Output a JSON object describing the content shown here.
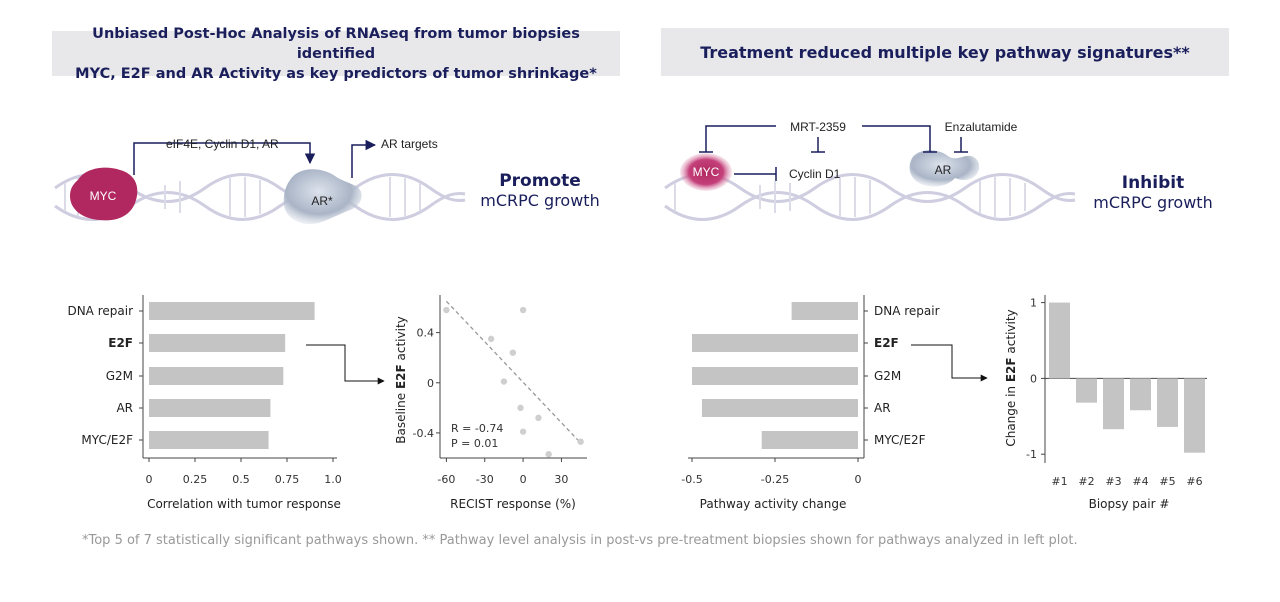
{
  "banners": {
    "left_line1": "Unbiased Post-Hoc Analysis of RNAseq from tumor biopsies identified",
    "left_line2": "MYC, E2F and AR Activity as key predictors of tumor shrinkage*",
    "right": "Treatment reduced multiple key pathway signatures**"
  },
  "diagram_left": {
    "myc": "MYC",
    "ar": "AR*",
    "arrow1": "eIF4E, Cyclin D1, AR",
    "arrow2": "AR targets",
    "effect_bold": "Promote",
    "effect_text": "mCRPC growth"
  },
  "diagram_right": {
    "myc": "MYC",
    "ar": "AR",
    "drug1": "MRT-2359",
    "drug2": "Enzalutamide",
    "target": "Cyclin D1",
    "effect_bold": "Inhibit",
    "effect_text": "mCRPC growth"
  },
  "footnote": "*Top 5 of 7 statistically significant pathways shown. ** Pathway level analysis in post-vs pre-treatment biopsies shown for pathways analyzed in left plot.",
  "chart_data": [
    {
      "type": "bar",
      "orientation": "horizontal",
      "categories": [
        "DNA repair",
        "E2F",
        "G2M",
        "AR",
        "MYC/E2F"
      ],
      "highlight": "E2F",
      "values": [
        0.9,
        0.74,
        0.73,
        0.66,
        0.65
      ],
      "xlabel": "Correlation with tumor response",
      "xlim": [
        0,
        1.0
      ],
      "xticks": [
        "0",
        "0.25",
        "0.5",
        "0.75",
        "1.0"
      ],
      "xtick_values": [
        0,
        0.25,
        0.5,
        0.75,
        1.0
      ]
    },
    {
      "type": "scatter",
      "x": [
        -60,
        0,
        -25,
        -8,
        -15,
        -2,
        12,
        0,
        20,
        45
      ],
      "y": [
        0.58,
        0.58,
        0.35,
        0.24,
        0.01,
        -0.2,
        -0.28,
        -0.39,
        -0.57,
        -0.47
      ],
      "trendline": {
        "x": [
          -60,
          45
        ],
        "y": [
          0.65,
          -0.48
        ]
      },
      "xlabel": "RECIST response (%)",
      "ylabel_prefix": "Baseline ",
      "ylabel_bold": "E2F",
      "ylabel_suffix": " activity",
      "xlim": [
        -65,
        50
      ],
      "ylim": [
        -0.6,
        0.7
      ],
      "xticks": [
        "-60",
        "-30",
        "0",
        "30"
      ],
      "xtick_values": [
        -60,
        -30,
        0,
        30
      ],
      "yticks": [
        "0.4",
        "0",
        "-0.4"
      ],
      "ytick_values": [
        0.4,
        0,
        -0.4
      ],
      "annotation_r": "R = -0.74",
      "annotation_p": "P = 0.01"
    },
    {
      "type": "bar",
      "orientation": "horizontal",
      "categories": [
        "DNA repair",
        "E2F",
        "G2M",
        "AR",
        "MYC/E2F"
      ],
      "highlight": "E2F",
      "values": [
        -0.2,
        -0.5,
        -0.5,
        -0.47,
        -0.29
      ],
      "xlabel": "Pathway activity change",
      "xlim": [
        -0.5,
        0
      ],
      "xticks": [
        "-0.5",
        "-0.25",
        "0"
      ],
      "xtick_values": [
        -0.5,
        -0.25,
        0
      ]
    },
    {
      "type": "bar",
      "categories": [
        "#1",
        "#2",
        "#3",
        "#4",
        "#5",
        "#6"
      ],
      "values": [
        1.0,
        -0.32,
        -0.67,
        -0.42,
        -0.64,
        -0.98
      ],
      "xlabel": "Biopsy pair #",
      "ylabel_prefix": "Change in ",
      "ylabel_bold": "E2F",
      "ylabel_suffix": " activity",
      "ylim": [
        -1.05,
        1.1
      ],
      "yticks": [
        "1",
        "0",
        "-1"
      ],
      "ytick_values": [
        1,
        0,
        -1
      ]
    }
  ],
  "colors": {
    "navy": "#1a1f5c",
    "bar": "#c4c4c4",
    "point": "#cfcfcf",
    "myc": "#b0285f",
    "ar": "#aeb8c8",
    "dna": "#d0cfe0"
  }
}
